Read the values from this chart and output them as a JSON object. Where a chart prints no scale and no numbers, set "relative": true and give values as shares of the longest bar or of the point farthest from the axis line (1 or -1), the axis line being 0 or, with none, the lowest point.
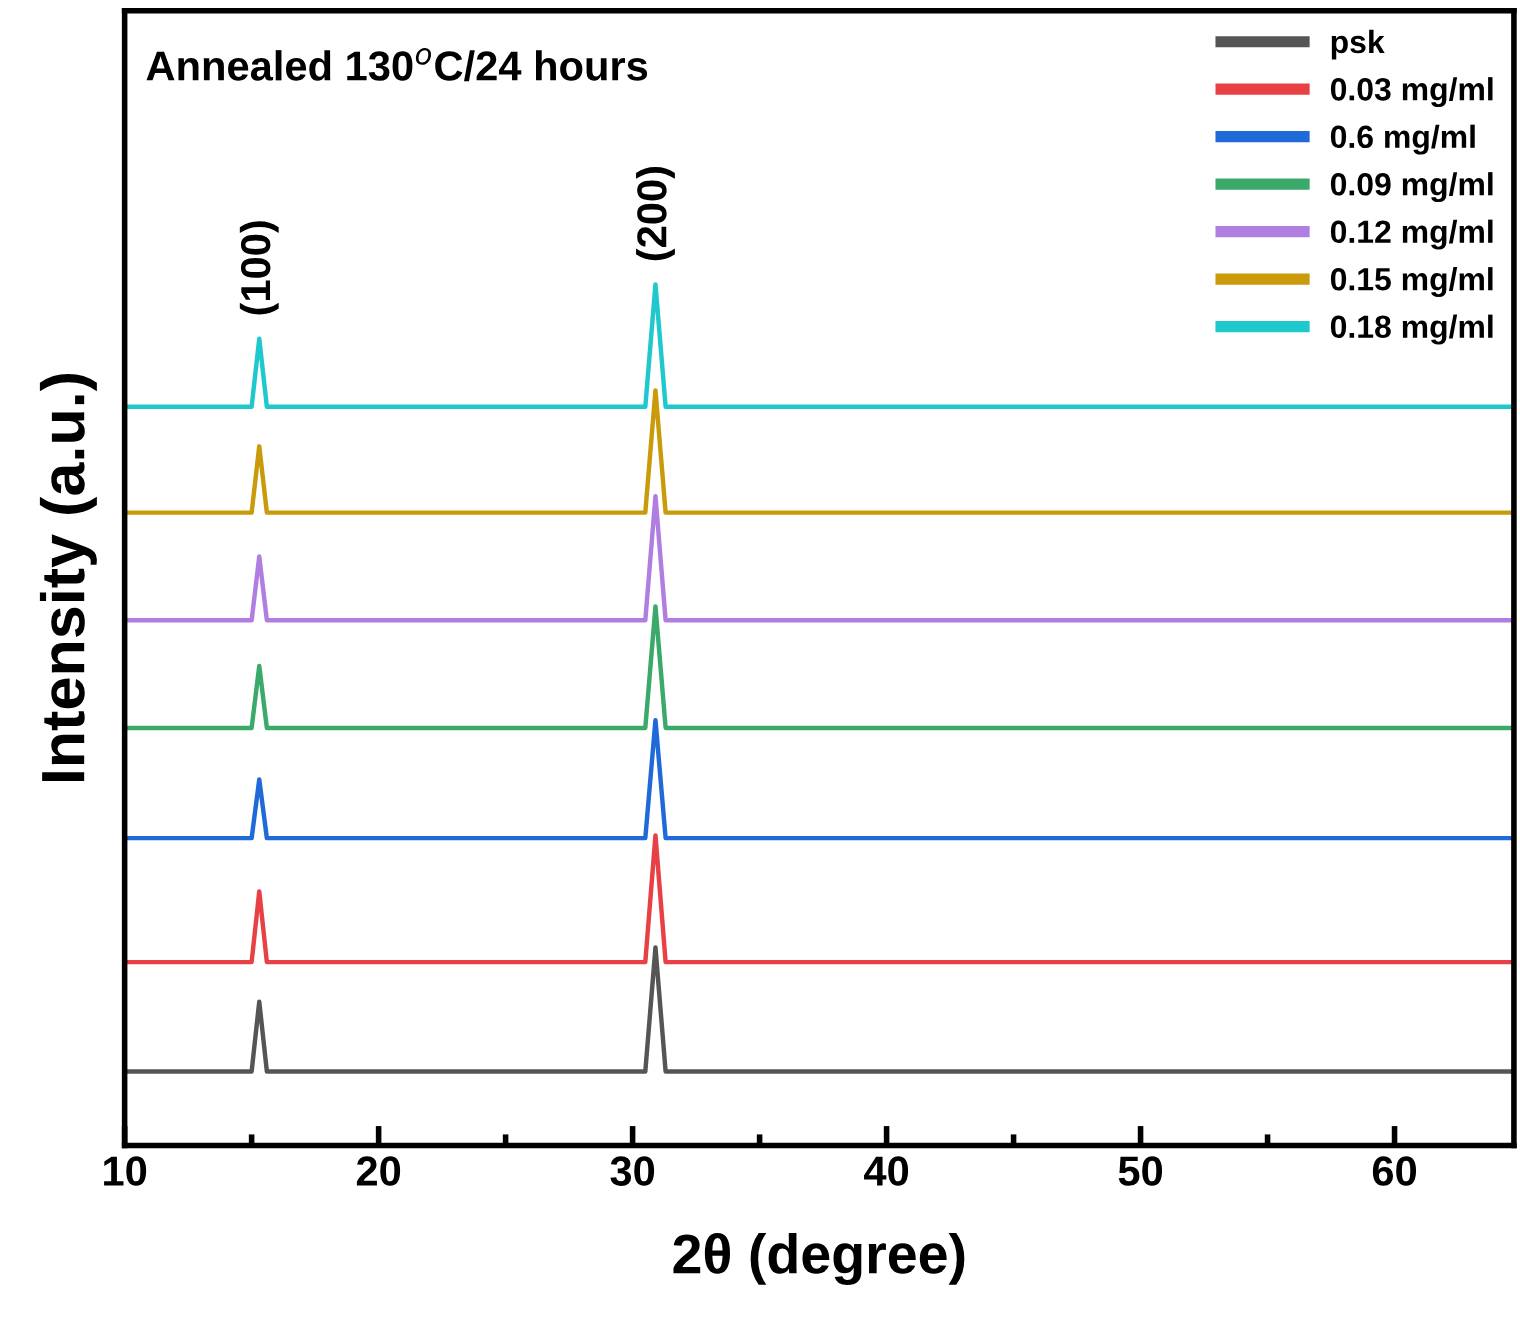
{
  "chart_data": {
    "type": "line",
    "relative": true,
    "xlabel": "2θ (degree)",
    "ylabel": "Intensity (a.u.)",
    "annotations": [
      "Annealed 130$^{o}$C/24 hours",
      {
        "text": "(100)",
        "x": 15.3,
        "y": 0.937
      },
      {
        "text": "(200)",
        "x": 30.9,
        "y": 1.0
      }
    ],
    "x": [
      10,
      15.0,
      15.3,
      15.6,
      30.5,
      30.9,
      31.3,
      64.7
    ],
    "xlim": [
      10,
      64.7
    ],
    "xticks": [
      10,
      20,
      30,
      40,
      50,
      60
    ],
    "tick_labels": "x",
    "legend": "top right",
    "grid": false,
    "marker": "none",
    "line_style": "solid",
    "series": [
      {
        "name": "psk",
        "color": "#555555",
        "values": [
          0.086,
          0.086,
          0.167,
          0.086,
          0.086,
          0.23,
          0.086,
          0.086
        ]
      },
      {
        "name": "0.03 mg/ml",
        "color": "#e84145",
        "values": [
          0.213,
          0.213,
          0.295,
          0.213,
          0.213,
          0.36,
          0.213,
          0.213
        ]
      },
      {
        "name": "0.6 mg/ml",
        "color": "#1f6ad8",
        "values": [
          0.357,
          0.357,
          0.425,
          0.357,
          0.357,
          0.494,
          0.357,
          0.357
        ]
      },
      {
        "name": "0.09 mg/ml",
        "color": "#3aa96a",
        "values": [
          0.485,
          0.485,
          0.557,
          0.485,
          0.485,
          0.626,
          0.485,
          0.485
        ]
      },
      {
        "name": "0.12 mg/ml",
        "color": "#b07ee0",
        "values": [
          0.61,
          0.61,
          0.684,
          0.61,
          0.61,
          0.754,
          0.61,
          0.61
        ]
      },
      {
        "name": "0.15 mg/ml",
        "color": "#c99a0a",
        "values": [
          0.735,
          0.735,
          0.812,
          0.735,
          0.735,
          0.877,
          0.735,
          0.735
        ]
      },
      {
        "name": "0.18 mg/ml",
        "color": "#1ec8cc",
        "values": [
          0.858,
          0.858,
          0.937,
          0.858,
          0.858,
          1.0,
          0.858,
          0.858
        ]
      }
    ]
  }
}
